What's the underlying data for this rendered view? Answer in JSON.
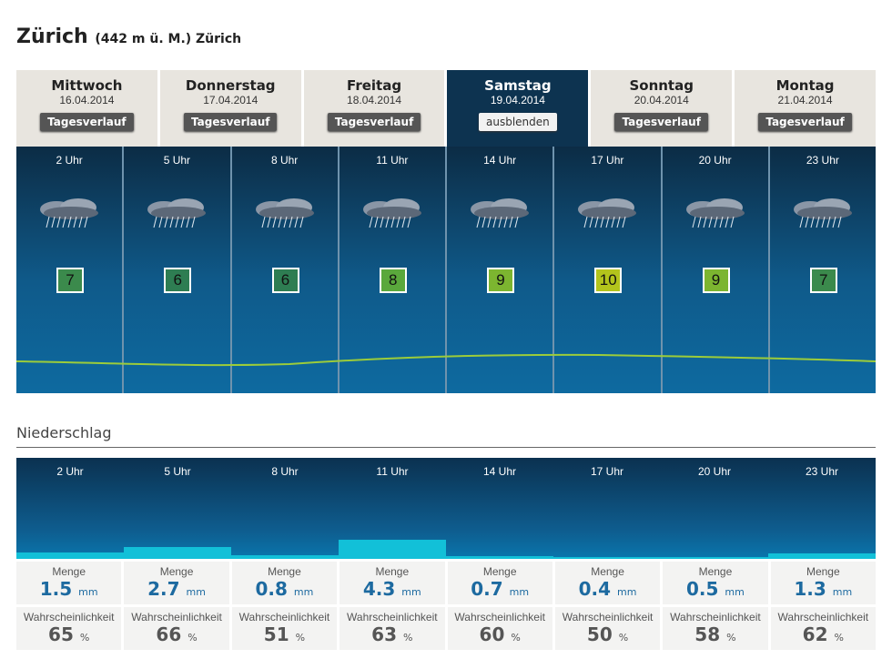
{
  "header": {
    "city": "Zürich",
    "altitude": "(442 m ü. M.) Zürich"
  },
  "days": [
    {
      "name": "Mittwoch",
      "date": "16.04.2014",
      "button": "Tagesverlauf",
      "selected": false
    },
    {
      "name": "Donnerstag",
      "date": "17.04.2014",
      "button": "Tagesverlauf",
      "selected": false
    },
    {
      "name": "Freitag",
      "date": "18.04.2014",
      "button": "Tagesverlauf",
      "selected": false
    },
    {
      "name": "Samstag",
      "date": "19.04.2014",
      "button": "ausblenden",
      "selected": true
    },
    {
      "name": "Sonntag",
      "date": "20.04.2014",
      "button": "Tagesverlauf",
      "selected": false
    },
    {
      "name": "Montag",
      "date": "21.04.2014",
      "button": "Tagesverlauf",
      "selected": false
    }
  ],
  "hours": [
    {
      "time": "2 Uhr",
      "icon": "rain-cloud-icon",
      "temp": "7",
      "color": "#3b8a4c"
    },
    {
      "time": "5 Uhr",
      "icon": "rain-cloud-icon",
      "temp": "6",
      "color": "#2e7d52"
    },
    {
      "time": "8 Uhr",
      "icon": "rain-cloud-icon",
      "temp": "6",
      "color": "#2e7d52"
    },
    {
      "time": "11 Uhr",
      "icon": "rain-cloud-icon",
      "temp": "8",
      "color": "#5aa83c"
    },
    {
      "time": "14 Uhr",
      "icon": "rain-cloud-icon",
      "temp": "9",
      "color": "#7cb530"
    },
    {
      "time": "17 Uhr",
      "icon": "rain-cloud-icon",
      "temp": "10",
      "color": "#b3c41c"
    },
    {
      "time": "20 Uhr",
      "icon": "rain-cloud-icon",
      "temp": "9",
      "color": "#7cb530"
    },
    {
      "time": "23 Uhr",
      "icon": "rain-cloud-icon",
      "temp": "7",
      "color": "#3b8a4c"
    }
  ],
  "precipitation": {
    "title": "Niederschlag",
    "amount_label": "Menge",
    "amount_unit": "mm",
    "prob_label": "Wahrscheinlichkeit",
    "prob_unit": "%",
    "items": [
      {
        "time": "2 Uhr",
        "amount": "1.5",
        "prob": "65"
      },
      {
        "time": "5 Uhr",
        "amount": "2.7",
        "prob": "66"
      },
      {
        "time": "8 Uhr",
        "amount": "0.8",
        "prob": "51"
      },
      {
        "time": "11 Uhr",
        "amount": "4.3",
        "prob": "63"
      },
      {
        "time": "14 Uhr",
        "amount": "0.7",
        "prob": "60"
      },
      {
        "time": "17 Uhr",
        "amount": "0.4",
        "prob": "50"
      },
      {
        "time": "20 Uhr",
        "amount": "0.5",
        "prob": "58"
      },
      {
        "time": "23 Uhr",
        "amount": "1.3",
        "prob": "62"
      }
    ]
  }
}
